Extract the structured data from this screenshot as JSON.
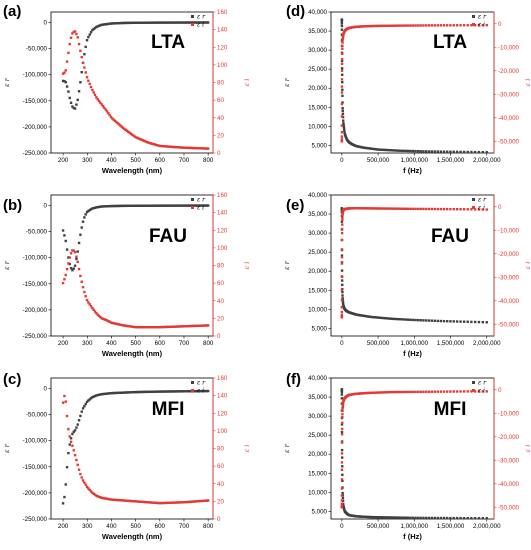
{
  "chart_data": [
    {
      "id": "a",
      "panel_label": "(a)",
      "material": "LTA",
      "type": "scatter",
      "xlabel": "Wavelength (nm)",
      "ylabel_left": "ε r",
      "ylabel_right": "ε i",
      "xlim": [
        150,
        820
      ],
      "xticks": [
        200,
        300,
        400,
        500,
        600,
        700,
        800
      ],
      "ylim_left": [
        -250000,
        20000
      ],
      "yticks_left": [
        -250000,
        -200000,
        -150000,
        -100000,
        -50000,
        0
      ],
      "ylim_right": [
        0,
        160
      ],
      "yticks_right": [
        0,
        20,
        40,
        60,
        80,
        100,
        120,
        140,
        160
      ],
      "legend": [
        "ε r",
        "ε i"
      ],
      "legend_position": "top-right",
      "series": [
        {
          "name": "ε r",
          "axis": "left",
          "color": "#404040",
          "x": [
            200,
            210,
            220,
            230,
            240,
            250,
            260,
            270,
            280,
            290,
            300,
            320,
            340,
            360,
            400,
            450,
            500,
            600,
            700,
            800
          ],
          "y": [
            -112000,
            -113000,
            -128000,
            -150000,
            -163000,
            -165000,
            -150000,
            -120000,
            -85000,
            -55000,
            -32000,
            -15000,
            -8000,
            -4500,
            -2000,
            -1000,
            -600,
            -300,
            -200,
            -100
          ]
        },
        {
          "name": "ε i",
          "axis": "right",
          "color": "#e53935",
          "x": [
            200,
            210,
            220,
            230,
            240,
            250,
            260,
            270,
            280,
            290,
            300,
            320,
            340,
            360,
            380,
            400,
            450,
            500,
            550,
            600,
            700,
            800
          ],
          "y": [
            90,
            92,
            110,
            128,
            137,
            138,
            132,
            118,
            105,
            95,
            85,
            72,
            62,
            55,
            48,
            40,
            28,
            18,
            12,
            8,
            6,
            5
          ]
        }
      ]
    },
    {
      "id": "d",
      "panel_label": "(d)",
      "material": "LTA",
      "type": "scatter",
      "xlabel": "f (Hz)",
      "ylabel_left": "ε r",
      "ylabel_right": "ε i",
      "xlim": [
        -150000,
        2100000
      ],
      "xticks": [
        0,
        500000,
        1000000,
        1500000,
        2000000
      ],
      "xtick_labels": [
        "0",
        "500,000",
        "1,000,000",
        "1,500,000",
        "2,000,000"
      ],
      "ylim_left": [
        3000,
        40000
      ],
      "yticks_left": [
        5000,
        10000,
        15000,
        20000,
        25000,
        30000,
        35000,
        40000
      ],
      "ylim_right": [
        -55000,
        5000
      ],
      "yticks_right": [
        -50000,
        -40000,
        -30000,
        -20000,
        -10000,
        0
      ],
      "legend": [
        "ε r",
        "ε i"
      ],
      "legend_position": "top-right",
      "series": [
        {
          "name": "ε r",
          "axis": "left",
          "color": "#404040",
          "x": [
            0,
            1000,
            3000,
            6000,
            10000,
            20000,
            40000,
            70000,
            100000,
            150000,
            200000,
            300000,
            500000,
            800000,
            1200000,
            1600000,
            2000000
          ],
          "y": [
            38000,
            33000,
            26000,
            20000,
            15000,
            11000,
            8000,
            6500,
            5800,
            5200,
            4800,
            4400,
            3900,
            3600,
            3400,
            3300,
            3200
          ]
        },
        {
          "name": "ε i",
          "axis": "right",
          "color": "#e53935",
          "x": [
            0,
            1000,
            3000,
            6000,
            10000,
            20000,
            40000,
            70000,
            100000,
            150000,
            200000,
            300000,
            500000,
            800000,
            1200000,
            1600000,
            2000000
          ],
          "y": [
            -50000,
            -30000,
            -18000,
            -11000,
            -7000,
            -4500,
            -3000,
            -2200,
            -1800,
            -1500,
            -1300,
            -1100,
            -900,
            -800,
            -700,
            -650,
            -600
          ]
        }
      ]
    },
    {
      "id": "b",
      "panel_label": "(b)",
      "material": "FAU",
      "type": "scatter",
      "xlabel": "Wavelength (nm)",
      "ylabel_left": "ε r",
      "ylabel_right": "ε i",
      "xlim": [
        150,
        820
      ],
      "xticks": [
        200,
        300,
        400,
        500,
        600,
        700,
        800
      ],
      "ylim_left": [
        -250000,
        20000
      ],
      "yticks_left": [
        -250000,
        -200000,
        -150000,
        -100000,
        -50000,
        0
      ],
      "ylim_right": [
        0,
        160
      ],
      "yticks_right": [
        0,
        20,
        40,
        60,
        80,
        100,
        120,
        140,
        160
      ],
      "legend": [
        "ε r",
        "ε i"
      ],
      "legend_position": "top-right",
      "series": [
        {
          "name": "ε r",
          "axis": "left",
          "color": "#404040",
          "x": [
            200,
            210,
            220,
            230,
            240,
            250,
            260,
            270,
            280,
            290,
            300,
            320,
            340,
            360,
            400,
            450,
            500,
            600,
            700,
            800
          ],
          "y": [
            -48000,
            -65000,
            -95000,
            -118000,
            -125000,
            -115000,
            -90000,
            -60000,
            -35000,
            -20000,
            -12000,
            -6000,
            -3500,
            -2000,
            -1200,
            -800,
            -600,
            -400,
            -300,
            -200
          ]
        },
        {
          "name": "ε i",
          "axis": "right",
          "color": "#e53935",
          "x": [
            200,
            210,
            220,
            230,
            240,
            250,
            260,
            270,
            280,
            290,
            300,
            320,
            340,
            360,
            380,
            400,
            450,
            500,
            600,
            700,
            800
          ],
          "y": [
            60,
            68,
            80,
            92,
            98,
            95,
            85,
            70,
            58,
            48,
            40,
            32,
            25,
            20,
            18,
            15,
            12,
            10,
            10,
            11,
            12
          ]
        }
      ]
    },
    {
      "id": "e",
      "panel_label": "(e)",
      "material": "FAU",
      "type": "scatter",
      "xlabel": "f (Hz)",
      "ylabel_left": "ε r",
      "ylabel_right": "ε i",
      "xlim": [
        -150000,
        2100000
      ],
      "xticks": [
        0,
        500000,
        1000000,
        1500000,
        2000000
      ],
      "xtick_labels": [
        "0",
        "500,000",
        "1,000,000",
        "1,500,000",
        "2,000,000"
      ],
      "ylim_left": [
        3000,
        40000
      ],
      "yticks_left": [
        5000,
        10000,
        15000,
        20000,
        25000,
        30000,
        35000,
        40000
      ],
      "ylim_right": [
        -55000,
        5000
      ],
      "yticks_right": [
        -50000,
        -40000,
        -30000,
        -20000,
        -10000,
        0
      ],
      "legend": [
        "ε r",
        "ε i"
      ],
      "legend_position": "top-right",
      "series": [
        {
          "name": "ε r",
          "axis": "left",
          "color": "#404040",
          "x": [
            0,
            1000,
            3000,
            6000,
            10000,
            20000,
            40000,
            70000,
            100000,
            200000,
            400000,
            700000,
            1000000,
            1400000,
            1800000,
            2000000
          ],
          "y": [
            36500,
            26000,
            19000,
            15500,
            13000,
            11000,
            10000,
            9500,
            9200,
            8600,
            8000,
            7500,
            7200,
            6900,
            6700,
            6600
          ]
        },
        {
          "name": "ε i",
          "axis": "right",
          "color": "#e53935",
          "x": [
            0,
            1000,
            3000,
            6000,
            10000,
            20000,
            40000,
            70000,
            100000,
            200000,
            400000,
            700000,
            1000000,
            1400000,
            1800000,
            2000000
          ],
          "y": [
            -47000,
            -25000,
            -12000,
            -6000,
            -3000,
            -1500,
            -1000,
            -800,
            -700,
            -650,
            -700,
            -800,
            -900,
            -1000,
            -1100,
            -1200
          ]
        }
      ]
    },
    {
      "id": "c",
      "panel_label": "(c)",
      "material": "MFI",
      "type": "scatter",
      "xlabel": "Wavelength (nm)",
      "ylabel_left": "ε r",
      "ylabel_right": "ε i",
      "xlim": [
        150,
        820
      ],
      "xticks": [
        200,
        300,
        400,
        500,
        600,
        700,
        800
      ],
      "ylim_left": [
        -250000,
        20000
      ],
      "yticks_left": [
        -250000,
        -200000,
        -150000,
        -100000,
        -50000,
        0
      ],
      "ylim_right": [
        0,
        160
      ],
      "yticks_right": [
        0,
        20,
        40,
        60,
        80,
        100,
        120,
        140,
        160
      ],
      "legend": [
        "ε r",
        "ε i"
      ],
      "legend_position": "top-right",
      "series": [
        {
          "name": "ε r",
          "axis": "left",
          "color": "#404040",
          "x": [
            200,
            205,
            210,
            215,
            220,
            230,
            240,
            250,
            260,
            270,
            280,
            300,
            320,
            340,
            360,
            400,
            450,
            500,
            600,
            700,
            800
          ],
          "y": [
            -220000,
            -210000,
            -190000,
            -160000,
            -130000,
            -100000,
            -85000,
            -80000,
            -70000,
            -55000,
            -40000,
            -25000,
            -17000,
            -13000,
            -11000,
            -9000,
            -8000,
            -7000,
            -6000,
            -5500,
            -5000
          ]
        },
        {
          "name": "ε i",
          "axis": "right",
          "color": "#e53935",
          "x": [
            200,
            205,
            210,
            215,
            220,
            230,
            240,
            250,
            260,
            270,
            280,
            300,
            320,
            340,
            360,
            400,
            450,
            500,
            600,
            700,
            800
          ],
          "y": [
            132,
            140,
            136,
            122,
            105,
            90,
            82,
            72,
            62,
            52,
            45,
            36,
            30,
            26,
            24,
            22,
            21,
            20,
            18,
            19,
            21
          ]
        }
      ]
    },
    {
      "id": "f",
      "panel_label": "(f)",
      "material": "MFI",
      "type": "scatter",
      "xlabel": "f (Hz)",
      "ylabel_left": "ε r",
      "ylabel_right": "ε i",
      "xlim": [
        -150000,
        2100000
      ],
      "xticks": [
        0,
        500000,
        1000000,
        1500000,
        2000000
      ],
      "xtick_labels": [
        "0",
        "500,000",
        "1,000,000",
        "1,500,000",
        "2,000,000"
      ],
      "ylim_left": [
        3000,
        40000
      ],
      "yticks_left": [
        5000,
        10000,
        15000,
        20000,
        25000,
        30000,
        35000,
        40000
      ],
      "ylim_right": [
        -55000,
        5000
      ],
      "yticks_right": [
        -50000,
        -40000,
        -30000,
        -20000,
        -10000,
        0
      ],
      "legend": [
        "ε r",
        "ε i"
      ],
      "legend_position": "top-right",
      "series": [
        {
          "name": "ε r",
          "axis": "left",
          "color": "#404040",
          "x": [
            0,
            1000,
            3000,
            6000,
            10000,
            20000,
            40000,
            70000,
            100000,
            200000,
            400000,
            700000,
            1000000,
            1400000,
            1800000,
            2000000
          ],
          "y": [
            37000,
            30000,
            22000,
            15000,
            10000,
            6500,
            5000,
            4400,
            4000,
            3700,
            3500,
            3400,
            3300,
            3250,
            3200,
            3200
          ]
        },
        {
          "name": "ε i",
          "axis": "right",
          "color": "#e53935",
          "x": [
            0,
            1000,
            3000,
            6000,
            10000,
            20000,
            40000,
            70000,
            100000,
            200000,
            400000,
            700000,
            1000000,
            1400000,
            1800000,
            2000000
          ],
          "y": [
            -50000,
            -35000,
            -20000,
            -12000,
            -8000,
            -5000,
            -3500,
            -2700,
            -2200,
            -1700,
            -1300,
            -1000,
            -900,
            -800,
            -700,
            -700
          ]
        }
      ]
    }
  ]
}
